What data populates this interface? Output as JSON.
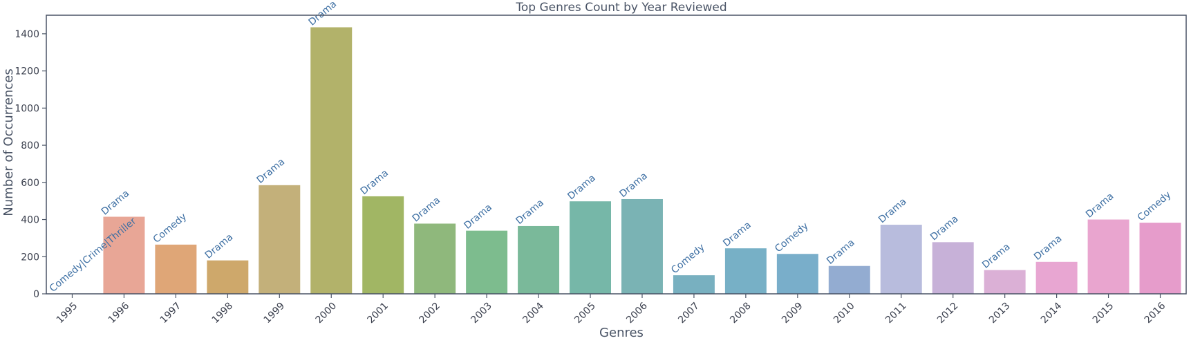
{
  "chart_data": {
    "type": "bar",
    "title": "Top Genres Count by Year Reviewed",
    "xlabel": "Genres",
    "ylabel": "Number of Occurrences",
    "ylim": [
      0,
      1500
    ],
    "yticks": [
      0,
      200,
      400,
      600,
      800,
      1000,
      1200,
      1400
    ],
    "grid": false,
    "categories": [
      "1995",
      "1996",
      "1997",
      "1998",
      "1999",
      "2000",
      "2001",
      "2002",
      "2003",
      "2004",
      "2005",
      "2006",
      "2007",
      "2008",
      "2009",
      "2010",
      "2011",
      "2012",
      "2013",
      "2014",
      "2015",
      "2016"
    ],
    "values": [
      1,
      415,
      265,
      180,
      585,
      1435,
      525,
      378,
      340,
      365,
      498,
      510,
      100,
      245,
      215,
      150,
      372,
      278,
      128,
      172,
      400,
      383
    ],
    "labels": [
      "Comedy|Crime|Thriller",
      "Drama",
      "Comedy",
      "Drama",
      "Drama",
      "Drama",
      "Drama",
      "Drama",
      "Drama",
      "Drama",
      "Drama",
      "Drama",
      "Comedy",
      "Drama",
      "Comedy",
      "Drama",
      "Drama",
      "Drama",
      "Drama",
      "Drama",
      "Drama",
      "Comedy"
    ],
    "colors": [
      "#e69a8c",
      "#e8a696",
      "#dfa677",
      "#cea86b",
      "#c3b07a",
      "#b2b26a",
      "#a1b664",
      "#8fb87c",
      "#7dbc8e",
      "#7ab99a",
      "#76b7a8",
      "#7ab3b4",
      "#78b0c0",
      "#77b0c6",
      "#79aeca",
      "#93acd1",
      "#b8bcdd",
      "#c7b1d8",
      "#dbb0d6",
      "#e8a6d2",
      "#e9a5cf",
      "#e69ccb"
    ],
    "axis_color": "#4a5466",
    "text_color": "#4a5466",
    "label_color": "#3d6fa3"
  }
}
